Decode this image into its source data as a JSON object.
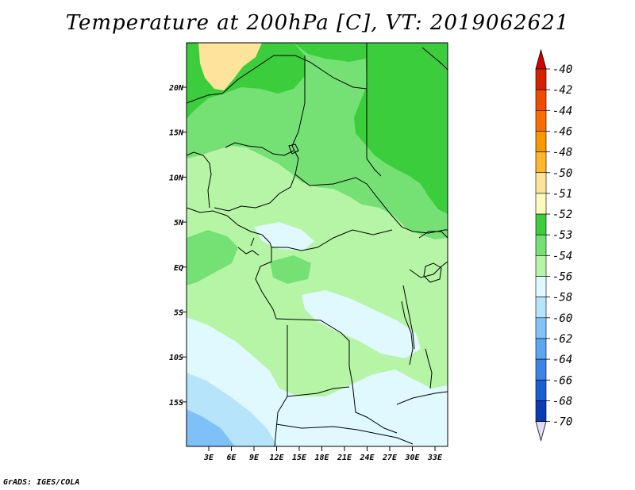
{
  "title": "Temperature at 200hPa [C], VT: 2019062621",
  "credit": "GrADS: IGES/COLA",
  "map": {
    "lat_ticks": [
      "20N",
      "15N",
      "10N",
      "5N",
      "EQ",
      "5S",
      "10S",
      "15S"
    ],
    "lon_ticks": [
      "3E",
      "6E",
      "9E",
      "12E",
      "15E",
      "18E",
      "21E",
      "24E",
      "27E",
      "30E",
      "33E"
    ],
    "colors": {
      "pale_yellow": "#fee49a",
      "dark_green": "#3ccd3c",
      "mid_green": "#75e175",
      "light_green": "#b5f5a5",
      "pale_cyan": "#dff9ff",
      "light_blue": "#b6e4fa",
      "blue": "#80c0f8"
    }
  },
  "colorbar": {
    "labels": [
      "-40",
      "-42",
      "-44",
      "-46",
      "-48",
      "-50",
      "-51",
      "-52",
      "-53",
      "-54",
      "-56",
      "-58",
      "-60",
      "-62",
      "-64",
      "-66",
      "-68",
      "-70"
    ],
    "colors": [
      "#d62200",
      "#f04c00",
      "#fa6e00",
      "#fa9600",
      "#fbb72d",
      "#fee49a",
      "#fef9bc",
      "#3ccd3c",
      "#75e175",
      "#b5f5a5",
      "#dff9ff",
      "#b6e4fa",
      "#82c4f8",
      "#5ba5f2",
      "#3b86e4",
      "#1c5ed2",
      "#0b3ab5",
      "#04108a"
    ],
    "top_arrow_color": "#d40000",
    "bottom_arrow_color": "#e0dcf8"
  }
}
